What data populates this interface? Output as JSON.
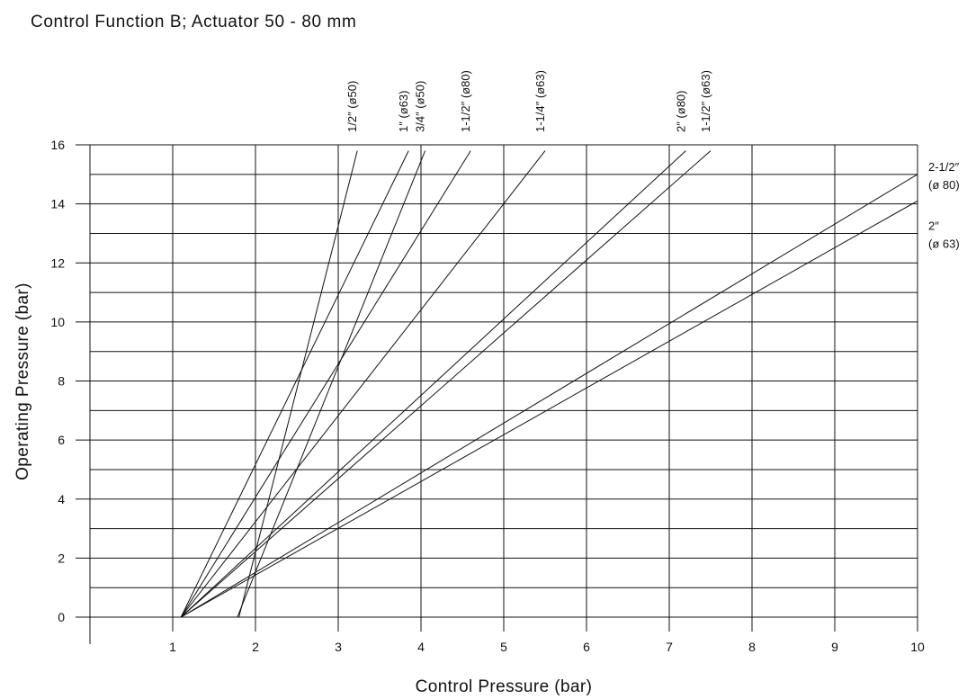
{
  "chart_data": {
    "type": "line",
    "title": "Control Function B; Actuator 50 - 80 mm",
    "xlabel": "Control Pressure (bar)",
    "ylabel": "Operating Pressure (bar)",
    "xlim": [
      0,
      10
    ],
    "ylim": [
      0,
      16
    ],
    "xticks": [
      "1",
      "2",
      "3",
      "4",
      "5",
      "6",
      "7",
      "8",
      "9",
      "10"
    ],
    "yticks": [
      "0",
      "2",
      "4",
      "6",
      "8",
      "10",
      "12",
      "14",
      "16"
    ],
    "grid": true,
    "series": [
      {
        "name": "1/2″ (ø50)",
        "x": [
          1.8,
          3.23
        ],
        "y": [
          0,
          15.8
        ]
      },
      {
        "name": "1″ (ø63)",
        "x": [
          1.1,
          3.85
        ],
        "y": [
          0,
          15.8
        ]
      },
      {
        "name": "3/4″ (ø50)",
        "x": [
          1.78,
          4.05
        ],
        "y": [
          0,
          15.8
        ]
      },
      {
        "name": "1-1/2″ (ø80)",
        "x": [
          1.1,
          4.6
        ],
        "y": [
          0,
          15.8
        ]
      },
      {
        "name": "1-1/4″ (ø63)",
        "x": [
          1.1,
          5.5
        ],
        "y": [
          0,
          15.8
        ]
      },
      {
        "name": "2″ (ø80)",
        "x": [
          1.1,
          7.2
        ],
        "y": [
          0,
          15.8
        ]
      },
      {
        "name": "1-1/2″ (ø63)",
        "x": [
          1.1,
          7.5
        ],
        "y": [
          0,
          15.8
        ]
      },
      {
        "name": "2-1/2″ (ø 80)",
        "x": [
          1.1,
          10.0
        ],
        "y": [
          0,
          15.0
        ]
      },
      {
        "name": "2″ (ø 63)",
        "x": [
          1.1,
          10.0
        ],
        "y": [
          0,
          14.1
        ]
      }
    ],
    "top_labels": [
      {
        "text": "1/2″ (ø50)",
        "x": 3.23
      },
      {
        "text": "1″ (ø63)",
        "x": 3.85
      },
      {
        "text": "3/4″ (ø50)",
        "x": 4.05
      },
      {
        "text": "1-1/2″ (ø80)",
        "x": 4.6
      },
      {
        "text": "1-1/4″ (ø63)",
        "x": 5.5
      },
      {
        "text": "2″ (ø80)",
        "x": 7.2
      },
      {
        "text": "1-1/2″ (ø63)",
        "x": 7.5
      }
    ],
    "right_labels": [
      {
        "line1": "2-1/2″",
        "line2": "(ø 80)",
        "y": 15.0
      },
      {
        "line1": "2″",
        "line2": "(ø 63)",
        "y": 13.0
      }
    ]
  }
}
